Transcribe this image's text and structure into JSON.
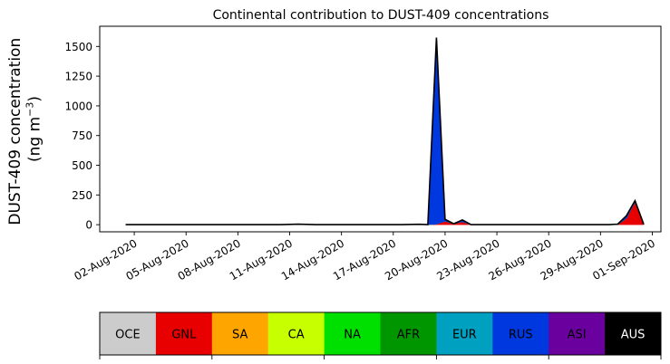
{
  "chart_data": {
    "type": "area",
    "title": "Continental contribution to DUST-409 concentrations",
    "ylabel_line1": "DUST-409 concentration",
    "ylabel_line2": "(ng m",
    "ylabel_sup": "−3",
    "ylabel_close": ")",
    "xlabel": "",
    "ylim": [
      -60,
      1670
    ],
    "xlim": [
      "2020-07-31 00:00",
      "2020-09-01 12:00"
    ],
    "grid": false,
    "y_ticks": [
      0,
      250,
      500,
      750,
      1000,
      1250,
      1500
    ],
    "y_tick_labels": [
      "0",
      "250",
      "500",
      "750",
      "1000",
      "1250",
      "1500"
    ],
    "x_ticks": [
      "2020-08-02",
      "2020-08-05",
      "2020-08-08",
      "2020-08-11",
      "2020-08-14",
      "2020-08-17",
      "2020-08-20",
      "2020-08-23",
      "2020-08-26",
      "2020-08-29",
      "2020-09-01"
    ],
    "x_tick_labels": [
      "02-Aug-2020",
      "05-Aug-2020",
      "08-Aug-2020",
      "11-Aug-2020",
      "14-Aug-2020",
      "17-Aug-2020",
      "20-Aug-2020",
      "23-Aug-2020",
      "26-Aug-2020",
      "29-Aug-2020",
      "01-Sep-2020"
    ],
    "x": [
      "2020-08-01 12:00",
      "2020-08-02 12:00",
      "2020-08-03 12:00",
      "2020-08-04 12:00",
      "2020-08-05 12:00",
      "2020-08-06 12:00",
      "2020-08-07 12:00",
      "2020-08-08 12:00",
      "2020-08-09 12:00",
      "2020-08-10 12:00",
      "2020-08-11 12:00",
      "2020-08-12 12:00",
      "2020-08-13 12:00",
      "2020-08-14 12:00",
      "2020-08-15 12:00",
      "2020-08-16 12:00",
      "2020-08-17 12:00",
      "2020-08-18 12:00",
      "2020-08-19 00:00",
      "2020-08-19 12:00",
      "2020-08-20 00:00",
      "2020-08-20 12:00",
      "2020-08-21 00:00",
      "2020-08-21 12:00",
      "2020-08-22 12:00",
      "2020-08-23 12:00",
      "2020-08-24 12:00",
      "2020-08-25 12:00",
      "2020-08-26 12:00",
      "2020-08-27 12:00",
      "2020-08-28 12:00",
      "2020-08-29 12:00",
      "2020-08-30 00:00",
      "2020-08-30 12:00",
      "2020-08-31 00:00",
      "2020-08-31 12:00"
    ],
    "series": [
      {
        "name": "OCE",
        "color": "#cccccc",
        "values": [
          0,
          0,
          0,
          0,
          0,
          0,
          0,
          0,
          0,
          0,
          0,
          0,
          0,
          0,
          0,
          0,
          0,
          0,
          0,
          0,
          0,
          0,
          0,
          0,
          0,
          0,
          0,
          0,
          0,
          0,
          0,
          0,
          0,
          0,
          0,
          0
        ]
      },
      {
        "name": "GNL",
        "color": "#e80000",
        "values": [
          0,
          0,
          0,
          0,
          0,
          0,
          0,
          0,
          0,
          0,
          2,
          0,
          0,
          0,
          0,
          0,
          0,
          0,
          0,
          5,
          30,
          8,
          25,
          0,
          0,
          0,
          0,
          0,
          0,
          0,
          0,
          0,
          0,
          55,
          190,
          3
        ]
      },
      {
        "name": "SA",
        "color": "#ffa500",
        "values": [
          0,
          0,
          0,
          0,
          0,
          0,
          0,
          0,
          0,
          0,
          2,
          0,
          0,
          0,
          0,
          0,
          0,
          0,
          0,
          0,
          0,
          0,
          0,
          0,
          0,
          0,
          0,
          0,
          0,
          0,
          0,
          0,
          0,
          0,
          0,
          0
        ]
      },
      {
        "name": "CA",
        "color": "#c8ff00",
        "values": [
          0,
          0,
          0,
          0,
          0,
          0,
          0,
          0,
          0,
          0,
          0,
          0,
          0,
          0,
          0,
          0,
          0,
          0,
          0,
          0,
          0,
          0,
          0,
          0,
          0,
          0,
          0,
          0,
          0,
          0,
          0,
          0,
          0,
          0,
          0,
          0
        ]
      },
      {
        "name": "NA",
        "color": "#00e000",
        "values": [
          0,
          0,
          0,
          0,
          0,
          0,
          0,
          0,
          0,
          0,
          0,
          0,
          0,
          0,
          0,
          0,
          0,
          3,
          0,
          0,
          0,
          0,
          0,
          0,
          0,
          0,
          0,
          0,
          0,
          0,
          0,
          0,
          0,
          0,
          0,
          0
        ]
      },
      {
        "name": "AFR",
        "color": "#009600",
        "values": [
          0,
          0,
          0,
          0,
          0,
          0,
          0,
          0,
          0,
          0,
          0,
          0,
          0,
          0,
          0,
          0,
          0,
          0,
          0,
          0,
          0,
          0,
          0,
          0,
          0,
          0,
          0,
          0,
          0,
          0,
          0,
          0,
          0,
          0,
          0,
          0
        ]
      },
      {
        "name": "EUR",
        "color": "#00a0c0",
        "values": [
          0,
          0,
          0,
          0,
          0,
          0,
          0,
          0,
          0,
          0,
          0,
          0,
          0,
          0,
          0,
          0,
          0,
          0,
          0,
          0,
          0,
          0,
          0,
          0,
          0,
          0,
          0,
          0,
          0,
          0,
          0,
          0,
          0,
          0,
          0,
          0
        ]
      },
      {
        "name": "RUS",
        "color": "#0038e0",
        "values": [
          0,
          0,
          0,
          0,
          0,
          0,
          0,
          0,
          0,
          0,
          0,
          0,
          0,
          0,
          0,
          0,
          0,
          0,
          0,
          1570,
          15,
          0,
          15,
          0,
          0,
          0,
          0,
          0,
          0,
          0,
          0,
          0,
          5,
          20,
          12,
          0
        ]
      },
      {
        "name": "ASI",
        "color": "#6a009e",
        "values": [
          0,
          0,
          0,
          0,
          0,
          0,
          0,
          0,
          0,
          0,
          0,
          0,
          0,
          0,
          0,
          0,
          0,
          0,
          0,
          0,
          0,
          0,
          0,
          0,
          0,
          0,
          0,
          0,
          0,
          0,
          0,
          0,
          0,
          0,
          0,
          0
        ]
      },
      {
        "name": "AUS",
        "color": "#000000",
        "values": [
          0,
          0,
          0,
          0,
          0,
          0,
          0,
          0,
          0,
          0,
          0,
          0,
          0,
          0,
          0,
          0,
          0,
          0,
          0,
          0,
          0,
          0,
          0,
          0,
          0,
          0,
          0,
          0,
          0,
          0,
          0,
          0,
          0,
          0,
          0,
          0
        ]
      }
    ],
    "total_outline_color": "#000000"
  },
  "legend": {
    "items": [
      {
        "label": "OCE",
        "color": "#cccccc",
        "text_color": "#000000"
      },
      {
        "label": "GNL",
        "color": "#e80000",
        "text_color": "#000000"
      },
      {
        "label": "SA",
        "color": "#ffa500",
        "text_color": "#000000"
      },
      {
        "label": "CA",
        "color": "#c8ff00",
        "text_color": "#000000"
      },
      {
        "label": "NA",
        "color": "#00e000",
        "text_color": "#000000"
      },
      {
        "label": "AFR",
        "color": "#009600",
        "text_color": "#000000"
      },
      {
        "label": "EUR",
        "color": "#00a0c0",
        "text_color": "#000000"
      },
      {
        "label": "RUS",
        "color": "#0038e0",
        "text_color": "#000000"
      },
      {
        "label": "ASI",
        "color": "#6a009e",
        "text_color": "#000000"
      },
      {
        "label": "AUS",
        "color": "#000000",
        "text_color": "#ffffff"
      }
    ]
  }
}
